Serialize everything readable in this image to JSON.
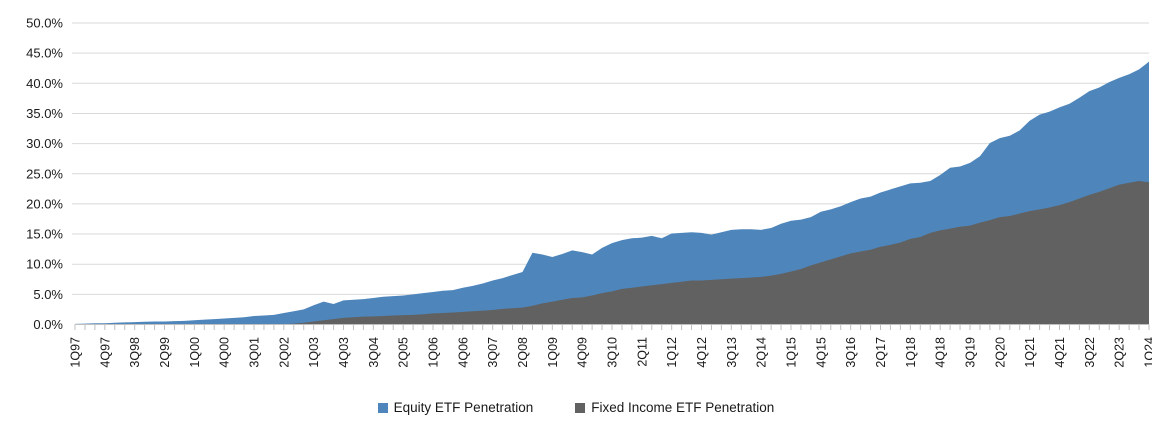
{
  "chart_data": {
    "type": "area",
    "title": "",
    "frequency": "quarterly",
    "x_start_label": "1Q97",
    "x_end_label": "1Q24",
    "n_points": 109,
    "grid": "horizontal",
    "legend_position": "bottom",
    "ylim": [
      0,
      50
    ],
    "y_tick_step_pct": 5,
    "y_tick_labels": [
      "0.0%",
      "5.0%",
      "10.0%",
      "15.0%",
      "20.0%",
      "25.0%",
      "30.0%",
      "35.0%",
      "40.0%",
      "45.0%",
      "50.0%"
    ],
    "x_tick_labels": [
      "1Q97",
      "4Q97",
      "3Q98",
      "2Q99",
      "1Q00",
      "4Q00",
      "3Q01",
      "2Q02",
      "1Q03",
      "4Q03",
      "3Q04",
      "2Q05",
      "1Q06",
      "4Q06",
      "3Q07",
      "2Q08",
      "1Q09",
      "4Q09",
      "3Q10",
      "2Q11",
      "1Q12",
      "4Q12",
      "3Q13",
      "2Q14",
      "1Q15",
      "4Q15",
      "3Q16",
      "2Q17",
      "1Q18",
      "4Q18",
      "3Q19",
      "2Q20",
      "1Q21",
      "4Q21",
      "3Q22",
      "2Q23",
      "1Q24"
    ],
    "x_label_every_n_points": 3,
    "colors": {
      "equity": "#4E86BC",
      "fixed_income": "#616161",
      "gridline": "#D9D9D9",
      "axis": "#BFBFBF",
      "label_text": "#1a1a1a"
    },
    "series": [
      {
        "name": "Equity ETF Penetration",
        "color": "#4E86BC",
        "values": [
          0.1,
          0.15,
          0.2,
          0.2,
          0.3,
          0.35,
          0.4,
          0.45,
          0.5,
          0.5,
          0.55,
          0.6,
          0.7,
          0.8,
          0.9,
          1.0,
          1.1,
          1.2,
          1.4,
          1.5,
          1.6,
          1.9,
          2.2,
          2.5,
          3.2,
          3.8,
          3.4,
          4.0,
          4.1,
          4.2,
          4.4,
          4.6,
          4.7,
          4.8,
          5.0,
          5.2,
          5.4,
          5.6,
          5.7,
          6.1,
          6.4,
          6.8,
          7.3,
          7.7,
          8.2,
          8.7,
          11.9,
          11.6,
          11.2,
          11.7,
          12.3,
          12.0,
          11.6,
          12.7,
          13.5,
          14.0,
          14.3,
          14.4,
          14.7,
          14.3,
          15.1,
          15.2,
          15.3,
          15.2,
          14.9,
          15.3,
          15.7,
          15.8,
          15.8,
          15.7,
          16.0,
          16.7,
          17.2,
          17.4,
          17.8,
          18.7,
          19.1,
          19.6,
          20.3,
          20.9,
          21.2,
          21.9,
          22.4,
          22.9,
          23.4,
          23.5,
          23.8,
          24.8,
          26.0,
          26.2,
          26.8,
          27.9,
          30.1,
          30.9,
          31.3,
          32.2,
          33.8,
          34.8,
          35.3,
          36.0,
          36.6,
          37.6,
          38.7,
          39.3,
          40.2,
          40.9,
          41.5,
          42.3,
          43.6
        ]
      },
      {
        "name": "Fixed Income ETF Penetration",
        "color": "#616161",
        "values": [
          0,
          0,
          0,
          0,
          0,
          0,
          0,
          0,
          0,
          0,
          0,
          0,
          0,
          0,
          0,
          0,
          0,
          0,
          0,
          0,
          0,
          0.05,
          0.15,
          0.3,
          0.5,
          0.7,
          0.9,
          1.1,
          1.2,
          1.3,
          1.35,
          1.4,
          1.5,
          1.55,
          1.6,
          1.7,
          1.85,
          1.9,
          2.0,
          2.1,
          2.2,
          2.3,
          2.4,
          2.6,
          2.7,
          2.8,
          3.1,
          3.5,
          3.8,
          4.1,
          4.4,
          4.5,
          4.8,
          5.2,
          5.5,
          5.9,
          6.1,
          6.3,
          6.5,
          6.7,
          6.9,
          7.1,
          7.3,
          7.3,
          7.4,
          7.5,
          7.6,
          7.7,
          7.8,
          7.9,
          8.1,
          8.4,
          8.8,
          9.2,
          9.8,
          10.3,
          10.8,
          11.3,
          11.8,
          12.1,
          12.4,
          12.9,
          13.2,
          13.6,
          14.2,
          14.5,
          15.2,
          15.6,
          15.9,
          16.2,
          16.4,
          16.9,
          17.3,
          17.8,
          18.0,
          18.4,
          18.8,
          19.1,
          19.4,
          19.8,
          20.3,
          20.9,
          21.5,
          22.0,
          22.6,
          23.2,
          23.5,
          23.8,
          23.6
        ]
      }
    ]
  },
  "legend": {
    "equity_label": "Equity ETF Penetration",
    "fixed_income_label": "Fixed Income ETF Penetration"
  }
}
